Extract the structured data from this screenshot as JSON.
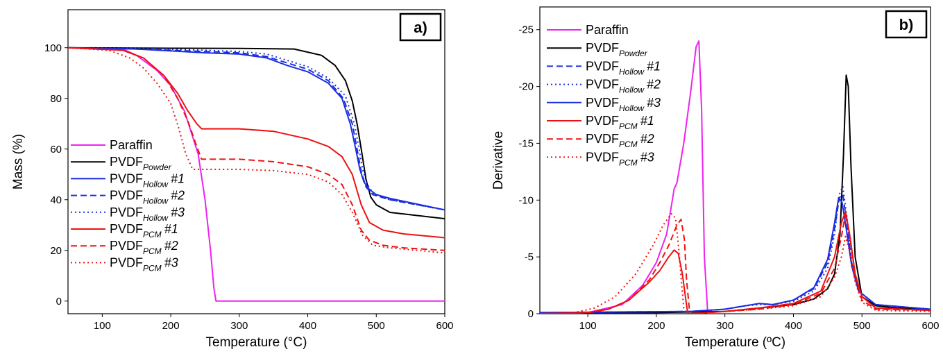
{
  "chart_data": [
    {
      "type": "line",
      "panel_label": "a)",
      "xlabel": "Temperature (°C)",
      "ylabel": "Mass (%)",
      "xlim": [
        50,
        600
      ],
      "ylim": [
        -5,
        115
      ],
      "xticks": [
        100,
        200,
        300,
        400,
        500,
        600
      ],
      "yticks": [
        0,
        20,
        40,
        60,
        80,
        100
      ],
      "legend_position": "left-bottom",
      "series": [
        {
          "name": "Paraffin",
          "color": "#ee22ee",
          "dash": "solid",
          "x": [
            50,
            130,
            150,
            180,
            200,
            220,
            240,
            250,
            258,
            263,
            266,
            280,
            350,
            450,
            600
          ],
          "y": [
            100,
            99.5,
            97,
            91,
            85,
            75,
            58,
            40,
            20,
            5,
            0,
            0,
            0,
            0,
            0
          ]
        },
        {
          "name": "PVDF",
          "sub": "Powder",
          "suffix": "",
          "color": "#000000",
          "dash": "solid",
          "x": [
            50,
            200,
            300,
            380,
            420,
            440,
            455,
            465,
            472,
            478,
            485,
            492,
            500,
            520,
            600
          ],
          "y": [
            100,
            99.8,
            99.7,
            99.5,
            97,
            93,
            87,
            79,
            70,
            60,
            48,
            41,
            38,
            35,
            32.5
          ],
          "ylim_note": ""
        },
        {
          "name": "PVDF",
          "sub": "Hollow",
          "suffix": "#1",
          "color": "#1a2ee0",
          "dash": "solid",
          "x": [
            50,
            150,
            250,
            300,
            340,
            370,
            400,
            430,
            450,
            462,
            470,
            476,
            482,
            490,
            500,
            520,
            600
          ],
          "y": [
            100,
            99.5,
            98,
            97.5,
            96,
            93,
            90.5,
            86,
            80,
            70,
            60,
            52,
            47,
            44,
            42,
            40.5,
            36
          ]
        },
        {
          "name": "PVDF",
          "sub": "Hollow",
          "suffix": "#2",
          "color": "#1a2ee0",
          "dash": "dash",
          "x": [
            50,
            150,
            250,
            300,
            340,
            370,
            400,
            430,
            452,
            465,
            472,
            478,
            485,
            495,
            520,
            600
          ],
          "y": [
            100,
            99.5,
            98.5,
            98,
            96.5,
            94,
            91.5,
            87,
            80,
            70,
            60,
            51,
            45,
            42,
            40,
            36
          ]
        },
        {
          "name": "PVDF",
          "sub": "Hollow",
          "suffix": "#3",
          "color": "#1a2ee0",
          "dash": "dot",
          "x": [
            50,
            150,
            250,
            300,
            340,
            370,
            400,
            430,
            455,
            468,
            475,
            480,
            487,
            497,
            520,
            600
          ],
          "y": [
            100,
            99.8,
            99,
            98.5,
            97.5,
            95,
            92.5,
            88,
            81,
            70,
            60,
            52,
            46,
            42,
            40,
            36
          ]
        },
        {
          "name": "PVDF",
          "sub": "PCM",
          "suffix": "#1",
          "color": "#ee1111",
          "dash": "solid",
          "x": [
            50,
            130,
            160,
            190,
            210,
            225,
            238,
            245,
            300,
            350,
            400,
            430,
            450,
            465,
            478,
            490,
            510,
            540,
            600
          ],
          "y": [
            100,
            99,
            96,
            89,
            82,
            75,
            70,
            68,
            68,
            67,
            64,
            61,
            57,
            50,
            38,
            31,
            28,
            26.5,
            25
          ]
        },
        {
          "name": "PVDF",
          "sub": "PCM",
          "suffix": "#2",
          "color": "#ee1111",
          "dash": "dash",
          "x": [
            50,
            130,
            160,
            190,
            210,
            225,
            238,
            245,
            300,
            350,
            400,
            430,
            450,
            465,
            478,
            490,
            510,
            540,
            600
          ],
          "y": [
            100,
            99,
            96,
            89,
            80,
            71,
            61,
            56,
            56,
            55,
            53,
            50,
            46,
            38,
            28,
            24,
            22,
            21,
            20
          ]
        },
        {
          "name": "PVDF",
          "sub": "PCM",
          "suffix": "#3",
          "color": "#ee1111",
          "dash": "dot",
          "x": [
            50,
            110,
            140,
            160,
            180,
            200,
            212,
            222,
            232,
            300,
            350,
            400,
            430,
            450,
            465,
            480,
            495,
            520,
            600
          ],
          "y": [
            100,
            99,
            96,
            92,
            86,
            78,
            68,
            58,
            52,
            52,
            51.5,
            50,
            47,
            42,
            35,
            26,
            22,
            21,
            19
          ]
        }
      ]
    },
    {
      "type": "line",
      "panel_label": "b)",
      "xlabel": "Temperature (ºC)",
      "ylabel": "Derivative",
      "xlim": [
        30,
        600
      ],
      "ylim": [
        0,
        -27
      ],
      "xticks": [
        100,
        200,
        300,
        400,
        500,
        600
      ],
      "yticks": [
        0,
        -5,
        -10,
        -15,
        -20,
        -25
      ],
      "ytick_labels": [
        "0",
        "-5",
        "-10",
        "-15",
        "-20",
        "-25"
      ],
      "legend_position": "top-left",
      "series": [
        {
          "name": "Paraffin",
          "color": "#ee22ee",
          "dash": "solid",
          "x": [
            30,
            100,
            150,
            180,
            200,
            215,
            222,
            226,
            230,
            240,
            250,
            258,
            262,
            266,
            270,
            275,
            600
          ],
          "y": [
            0,
            -0.1,
            -0.8,
            -2.5,
            -4.5,
            -7,
            -9.5,
            -11,
            -11.5,
            -15,
            -19.5,
            -23.5,
            -24,
            -18,
            -5,
            0,
            0
          ]
        },
        {
          "name": "PVDF",
          "sub": "Powder",
          "suffix": "",
          "color": "#000000",
          "dash": "solid",
          "x": [
            30,
            200,
            300,
            350,
            400,
            430,
            450,
            460,
            468,
            473,
            477,
            480,
            484,
            490,
            500,
            520,
            550,
            600
          ],
          "y": [
            -0.1,
            -0.1,
            -0.2,
            -0.5,
            -0.8,
            -1.3,
            -2.2,
            -3.5,
            -7,
            -14,
            -21,
            -20,
            -13,
            -5,
            -1.5,
            -0.7,
            -0.5,
            -0.4
          ]
        },
        {
          "name": "PVDF",
          "sub": "Hollow",
          "suffix": "#1",
          "color": "#1a2ee0",
          "dash": "dash",
          "x": [
            30,
            250,
            300,
            330,
            350,
            370,
            400,
            430,
            450,
            460,
            467,
            472,
            478,
            485,
            495,
            520,
            600
          ],
          "y": [
            -0.1,
            -0.2,
            -0.4,
            -0.7,
            -0.9,
            -0.8,
            -1.2,
            -2.2,
            -4.5,
            -7.5,
            -10.2,
            -10.5,
            -8,
            -4.5,
            -2,
            -0.8,
            -0.4
          ]
        },
        {
          "name": "PVDF",
          "sub": "Hollow",
          "suffix": "#2",
          "color": "#1a2ee0",
          "dash": "dot",
          "x": [
            30,
            250,
            300,
            330,
            350,
            370,
            400,
            430,
            450,
            460,
            467,
            472,
            478,
            485,
            495,
            520,
            600
          ],
          "y": [
            -0.1,
            -0.2,
            -0.4,
            -0.7,
            -0.8,
            -0.8,
            -1.1,
            -2,
            -4,
            -7,
            -10.5,
            -11.2,
            -8.5,
            -4.5,
            -2,
            -0.8,
            -0.4
          ]
        },
        {
          "name": "PVDF",
          "sub": "Hollow",
          "suffix": "#3",
          "color": "#1a2ee0",
          "dash": "solid",
          "x": [
            30,
            250,
            300,
            330,
            350,
            370,
            400,
            430,
            450,
            460,
            466,
            471,
            477,
            485,
            495,
            520,
            600
          ],
          "y": [
            -0.1,
            -0.2,
            -0.4,
            -0.7,
            -0.9,
            -0.8,
            -1.2,
            -2.3,
            -4.8,
            -8,
            -10.2,
            -9.8,
            -7.5,
            -4.2,
            -2,
            -0.8,
            -0.4
          ]
        },
        {
          "name": "PVDF",
          "sub": "PCM",
          "suffix": "#1",
          "color": "#ee1111",
          "dash": "solid",
          "x": [
            30,
            100,
            130,
            160,
            190,
            205,
            218,
            226,
            232,
            238,
            243,
            246,
            250,
            300,
            350,
            400,
            440,
            460,
            470,
            476,
            482,
            490,
            500,
            520,
            600
          ],
          "y": [
            0,
            -0.1,
            -0.4,
            -1.2,
            -2.8,
            -3.8,
            -5,
            -5.6,
            -5.3,
            -3.5,
            -1.2,
            0,
            0,
            -0.2,
            -0.5,
            -0.9,
            -2,
            -5,
            -8,
            -9,
            -7,
            -3.5,
            -1.5,
            -0.5,
            -0.3
          ]
        },
        {
          "name": "PVDF",
          "sub": "PCM",
          "suffix": "#2",
          "color": "#ee1111",
          "dash": "dash",
          "x": [
            30,
            100,
            130,
            160,
            190,
            205,
            218,
            230,
            236,
            241,
            244,
            248,
            252,
            300,
            350,
            400,
            440,
            460,
            470,
            476,
            482,
            490,
            500,
            520,
            600
          ],
          "y": [
            0,
            -0.1,
            -0.4,
            -1.2,
            -3,
            -4.5,
            -6,
            -7.8,
            -8.3,
            -6.5,
            -3,
            -0.5,
            0,
            -0.2,
            -0.4,
            -0.8,
            -1.8,
            -4,
            -6.8,
            -8.8,
            -7,
            -3.5,
            -1.2,
            -0.4,
            -0.3
          ]
        },
        {
          "name": "PVDF",
          "sub": "PCM",
          "suffix": "#3",
          "color": "#ee1111",
          "dash": "dot",
          "x": [
            30,
            80,
            110,
            140,
            170,
            195,
            210,
            222,
            228,
            233,
            237,
            240,
            245,
            300,
            350,
            400,
            440,
            460,
            470,
            476,
            482,
            490,
            500,
            520,
            600
          ],
          "y": [
            0,
            -0.1,
            -0.5,
            -1.5,
            -3.5,
            -6,
            -7.8,
            -8.8,
            -8.4,
            -5.5,
            -2.5,
            -0.5,
            0,
            -0.2,
            -0.4,
            -0.7,
            -1.5,
            -3.2,
            -5,
            -6.8,
            -5.5,
            -2.8,
            -1,
            -0.3,
            -0.2
          ]
        }
      ]
    }
  ]
}
